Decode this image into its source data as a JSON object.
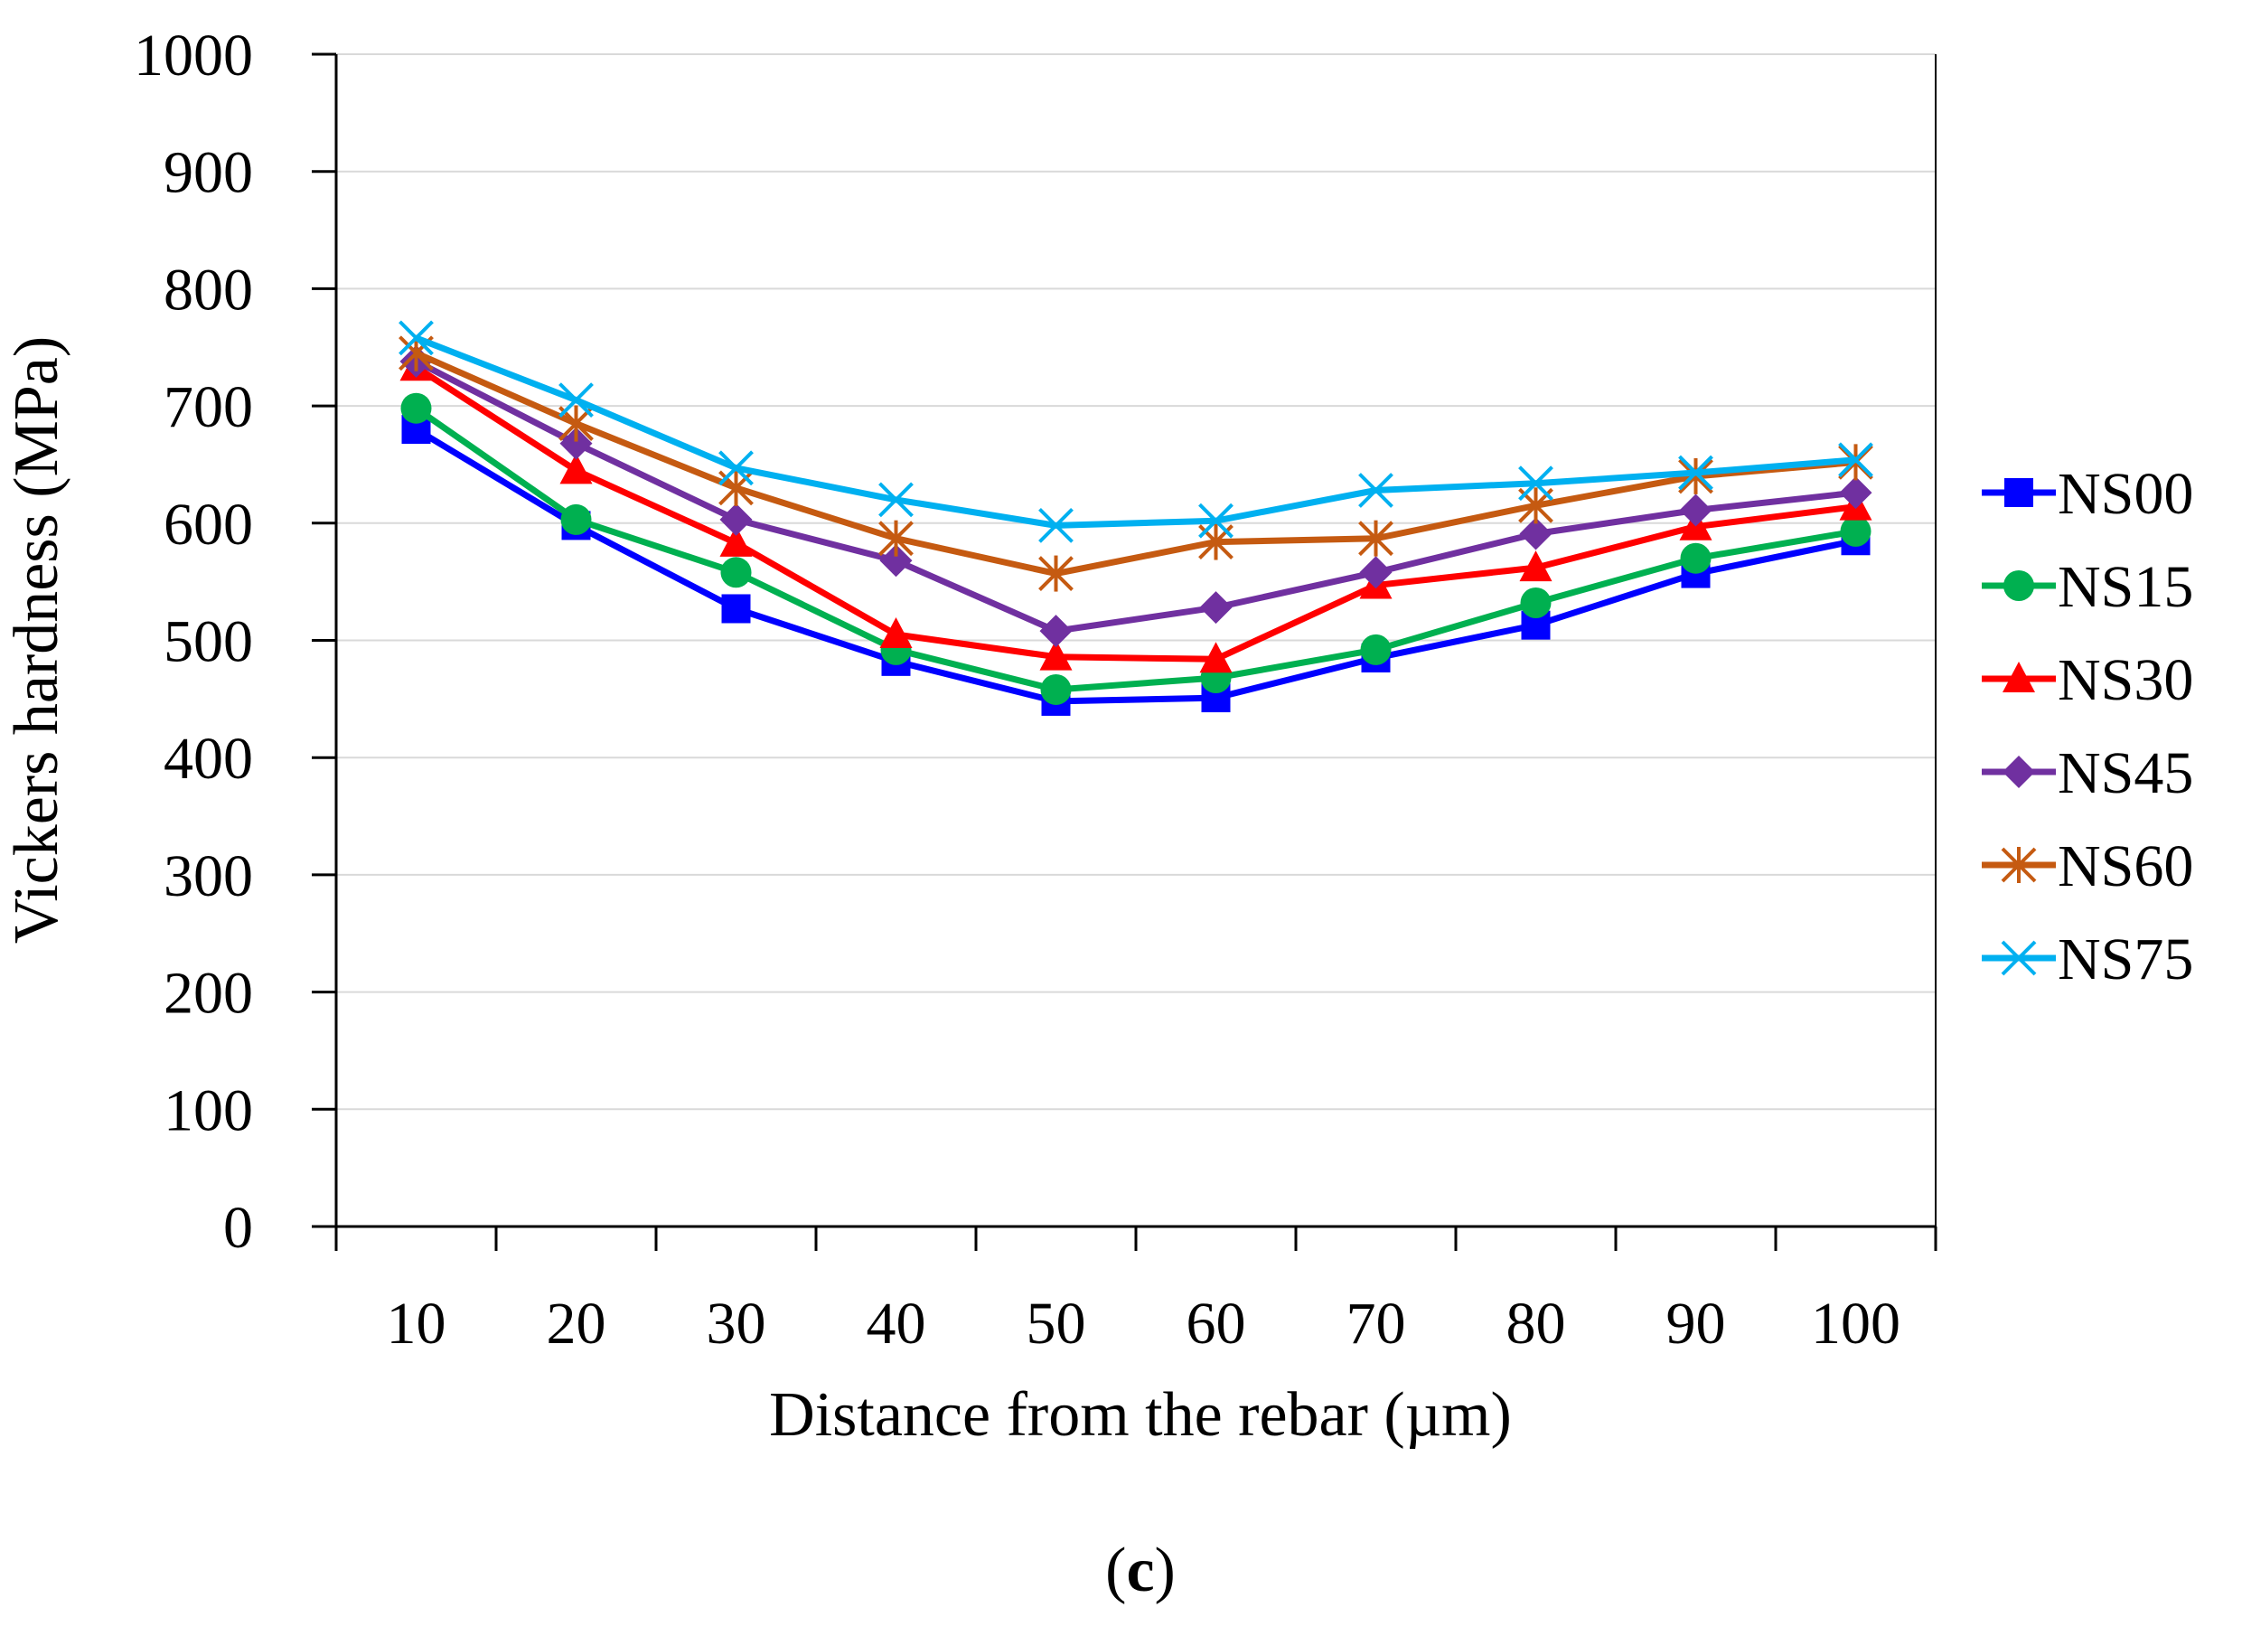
{
  "chart_data": {
    "type": "line",
    "title": "",
    "xlabel": "Distance from the rebar (µm)",
    "ylabel": "Vickers hardness (MPa)",
    "caption_open": "(",
    "caption_letter": "c",
    "caption_close": ")",
    "categories": [
      "10",
      "20",
      "30",
      "40",
      "50",
      "60",
      "70",
      "80",
      "90",
      "100"
    ],
    "ylim": [
      0,
      1000
    ],
    "yticks": [
      "0",
      "100",
      "200",
      "300",
      "400",
      "500",
      "600",
      "700",
      "800",
      "900",
      "1000"
    ],
    "grid": true,
    "legend_position": "right",
    "series": [
      {
        "name": "NS00",
        "color": "#0000ff",
        "marker": "square",
        "values": [
          680,
          598,
          527,
          482,
          448,
          451,
          485,
          513,
          557,
          585
        ]
      },
      {
        "name": "NS15",
        "color": "#00b050",
        "marker": "circle",
        "values": [
          698,
          603,
          558,
          492,
          458,
          468,
          492,
          532,
          570,
          593
        ]
      },
      {
        "name": "NS30",
        "color": "#ff0000",
        "marker": "triangle",
        "values": [
          733,
          645,
          583,
          505,
          486,
          484,
          547,
          562,
          597,
          614
        ]
      },
      {
        "name": "NS45",
        "color": "#7030a0",
        "marker": "diamond",
        "values": [
          738,
          668,
          603,
          568,
          508,
          528,
          558,
          591,
          611,
          626
        ]
      },
      {
        "name": "NS60",
        "color": "#c55a11",
        "marker": "asterisk",
        "values": [
          745,
          685,
          630,
          587,
          557,
          584,
          587,
          615,
          640,
          652
        ]
      },
      {
        "name": "NS75",
        "color": "#00b0f0",
        "marker": "x",
        "values": [
          758,
          705,
          647,
          620,
          598,
          602,
          628,
          634,
          643,
          654
        ]
      }
    ]
  }
}
